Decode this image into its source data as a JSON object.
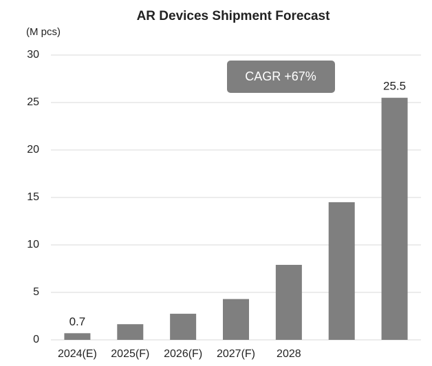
{
  "chart_data": {
    "type": "bar",
    "title": "AR Devices Shipment Forecast",
    "y_axis_label": "(M pcs)",
    "annotation": "CAGR +67%",
    "categories": [
      "2024(E)",
      "2025(F)",
      "2026(F)",
      "2027(F)",
      "2028",
      null,
      null
    ],
    "values": [
      0.7,
      1.65,
      2.75,
      4.3,
      7.9,
      14.5,
      25.5
    ],
    "value_labels": [
      "0.7",
      null,
      null,
      null,
      null,
      null,
      "25.5"
    ],
    "color": "#7f7f7f",
    "ylim": [
      0,
      30
    ],
    "yticks": [
      0,
      5,
      10,
      15,
      20,
      25,
      30
    ],
    "grid": true
  }
}
